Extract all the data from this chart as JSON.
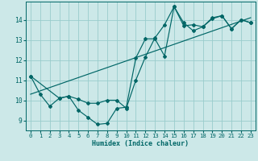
{
  "title": "",
  "xlabel": "Humidex (Indice chaleur)",
  "ylabel": "",
  "bg_color": "#cce8e8",
  "line_color": "#006666",
  "grid_color": "#99cccc",
  "xlim": [
    -0.5,
    23.5
  ],
  "ylim": [
    8.5,
    14.9
  ],
  "yticks": [
    9,
    10,
    11,
    12,
    13,
    14
  ],
  "xticks": [
    0,
    1,
    2,
    3,
    4,
    5,
    6,
    7,
    8,
    9,
    10,
    11,
    12,
    13,
    14,
    15,
    16,
    17,
    18,
    19,
    20,
    21,
    22,
    23
  ],
  "line1_x": [
    0,
    1,
    2,
    3,
    4,
    5,
    6,
    7,
    8,
    9,
    10,
    11,
    12,
    13,
    14,
    15,
    16,
    17,
    18,
    19,
    20,
    21,
    22,
    23
  ],
  "line1_y": [
    11.2,
    10.3,
    9.7,
    10.1,
    10.2,
    9.5,
    9.15,
    8.8,
    8.85,
    9.6,
    9.65,
    12.1,
    13.05,
    13.05,
    12.2,
    14.65,
    13.7,
    13.75,
    13.65,
    14.1,
    14.2,
    13.55,
    14.0,
    13.85
  ],
  "line2_x": [
    0,
    3,
    4,
    5,
    6,
    7,
    8,
    9,
    10,
    11,
    12,
    13,
    14,
    15,
    16,
    17,
    18,
    19,
    20,
    21,
    22,
    23
  ],
  "line2_y": [
    11.2,
    10.1,
    10.2,
    10.05,
    9.85,
    9.85,
    10.0,
    10.0,
    9.6,
    11.0,
    12.15,
    13.1,
    13.75,
    14.65,
    13.85,
    13.45,
    13.65,
    14.05,
    14.2,
    13.55,
    14.0,
    13.85
  ],
  "line3_x": [
    0,
    23
  ],
  "line3_y": [
    10.3,
    14.1
  ]
}
